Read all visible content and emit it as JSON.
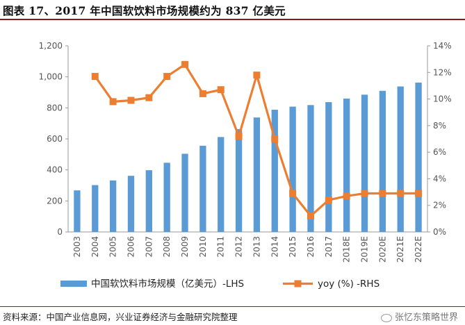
{
  "title": "图表 17、2017 年中国软饮料市场规模约为 837 亿美元",
  "source": "资料来源：中国产业信息网，兴业证券经济与金融研究院整理",
  "watermark": "张忆东策略世界",
  "colors": {
    "bar": "#5b9bd5",
    "line": "#ed7d31",
    "axis": "#999999",
    "text": "#555555",
    "rule": "#8c1a1a"
  },
  "chart_data": {
    "type": "bar+line",
    "categories": [
      "2003",
      "2004",
      "2005",
      "2006",
      "2007",
      "2008",
      "2009",
      "2010",
      "2011",
      "2012",
      "2013",
      "2014",
      "2015",
      "2016",
      "2017",
      "2018E",
      "2019E",
      "2020E",
      "2021E",
      "2022E"
    ],
    "series": [
      {
        "name": "中国软饮料市场规模（亿美元）-LHS",
        "type": "bar",
        "axis": "left",
        "values": [
          268,
          302,
          332,
          362,
          398,
          446,
          504,
          556,
          612,
          663,
          738,
          788,
          808,
          818,
          837,
          860,
          885,
          910,
          938,
          963
        ]
      },
      {
        "name": "yoy (%) -RHS",
        "type": "line",
        "axis": "right",
        "values": [
          null,
          11.7,
          9.8,
          9.9,
          10.1,
          11.7,
          12.6,
          10.4,
          10.7,
          7.2,
          11.8,
          7.0,
          2.9,
          1.2,
          2.4,
          2.7,
          2.9,
          2.9,
          2.9,
          2.9
        ]
      }
    ],
    "y_left": {
      "min": 0,
      "max": 1200,
      "ticks": [
        0,
        200,
        400,
        600,
        800,
        1000,
        1200
      ],
      "tick_labels": [
        "0",
        "200",
        "400",
        "600",
        "800",
        "1,000",
        "1,200"
      ]
    },
    "y_right": {
      "min": 0,
      "max": 14,
      "ticks": [
        0,
        2,
        4,
        6,
        8,
        10,
        12,
        14
      ],
      "tick_labels": [
        "0%",
        "2%",
        "4%",
        "6%",
        "8%",
        "10%",
        "12%",
        "14%"
      ]
    },
    "legend": [
      {
        "label": "中国软饮料市场规模（亿美元）-LHS",
        "kind": "bar"
      },
      {
        "label": "yoy (%) -RHS",
        "kind": "line"
      }
    ],
    "legend_position": "bottom"
  }
}
